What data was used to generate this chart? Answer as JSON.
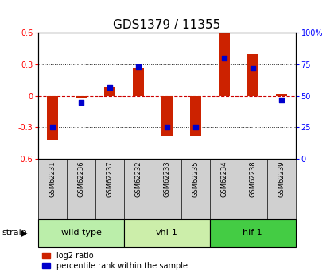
{
  "title": "GDS1379 / 11355",
  "samples": [
    "GSM62231",
    "GSM62236",
    "GSM62237",
    "GSM62232",
    "GSM62233",
    "GSM62235",
    "GSM62234",
    "GSM62238",
    "GSM62239"
  ],
  "log2_ratio": [
    -0.42,
    -0.02,
    0.08,
    0.27,
    -0.38,
    -0.38,
    0.6,
    0.4,
    0.02
  ],
  "percentile_rank": [
    25,
    45,
    57,
    73,
    25,
    25,
    80,
    72,
    47
  ],
  "groups": [
    {
      "label": "wild type",
      "start": 0,
      "end": 3,
      "color": "#bbeeaa"
    },
    {
      "label": "vhl-1",
      "start": 3,
      "end": 6,
      "color": "#cceeaa"
    },
    {
      "label": "hif-1",
      "start": 6,
      "end": 9,
      "color": "#44cc44"
    }
  ],
  "ylim_left": [
    -0.6,
    0.6
  ],
  "ylim_right": [
    0,
    100
  ],
  "yticks_left": [
    -0.6,
    -0.3,
    0.0,
    0.3,
    0.6
  ],
  "yticks_right": [
    0,
    25,
    50,
    75,
    100
  ],
  "bar_color": "#cc2200",
  "dot_color": "#0000cc",
  "zero_line_color": "#cc0000",
  "grid_color": "#222222",
  "sample_bg": "#d0d0d0",
  "legend_red_label": "log2 ratio",
  "legend_blue_label": "percentile rank within the sample",
  "strain_label": "strain",
  "title_fontsize": 11,
  "axis_fontsize": 7,
  "sample_fontsize": 6,
  "group_fontsize": 8,
  "legend_fontsize": 7
}
